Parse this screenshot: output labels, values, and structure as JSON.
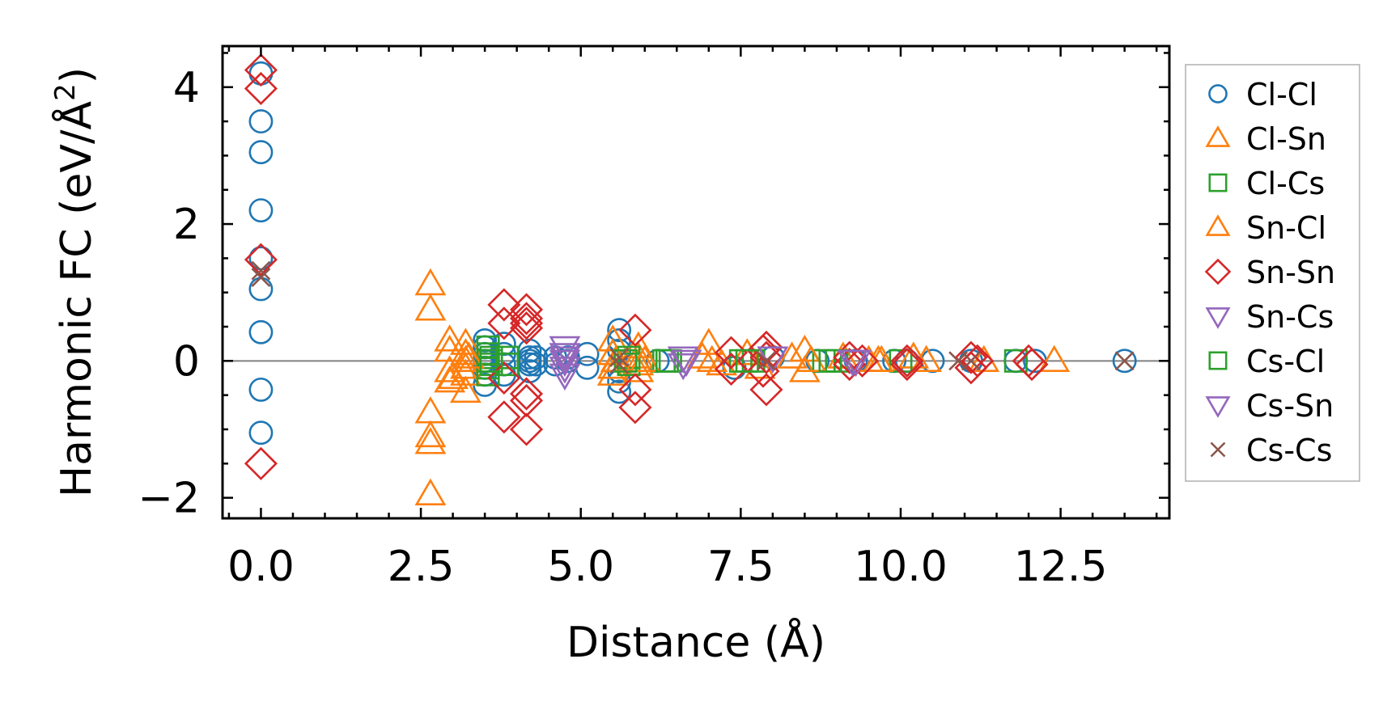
{
  "chart_data": {
    "type": "scatter",
    "title": "",
    "xlabel": "Distance (Å)",
    "ylabel_main": "Harmonic FC (eV/Å",
    "ylabel_sup": "2",
    "ylabel_close": ")",
    "xlim": [
      -0.6,
      14.2
    ],
    "ylim": [
      -2.3,
      4.6
    ],
    "xticks": [
      0.0,
      2.5,
      5.0,
      7.5,
      10.0,
      12.5
    ],
    "xtick_labels": [
      "0.0",
      "2.5",
      "5.0",
      "7.5",
      "10.0",
      "12.5"
    ],
    "yticks": [
      -2,
      0,
      2,
      4
    ],
    "ytick_labels": [
      "−2",
      "0",
      "2",
      "4"
    ],
    "x_minor_step": 0.5,
    "y_minor_step": 0.5,
    "zero_line": true,
    "grid": false,
    "legend_position": "outside-right",
    "series": [
      {
        "name": "Cl-Cl",
        "marker": "circle",
        "color": "#1f77b4",
        "points": [
          [
            0,
            4.2
          ],
          [
            0,
            3.5
          ],
          [
            0,
            3.05
          ],
          [
            0,
            2.2
          ],
          [
            0,
            1.5
          ],
          [
            0,
            1.05
          ],
          [
            0,
            0.42
          ],
          [
            0,
            -0.42
          ],
          [
            0,
            -1.05
          ],
          [
            3.5,
            0.3
          ],
          [
            3.5,
            0.2
          ],
          [
            3.5,
            0.1
          ],
          [
            3.5,
            0.0
          ],
          [
            3.5,
            -0.1
          ],
          [
            3.5,
            -0.2
          ],
          [
            3.5,
            -0.35
          ],
          [
            3.8,
            0.25
          ],
          [
            3.8,
            0.1
          ],
          [
            3.8,
            -0.05
          ],
          [
            3.8,
            -0.2
          ],
          [
            4.2,
            0.15
          ],
          [
            4.2,
            0.05
          ],
          [
            4.2,
            0.0
          ],
          [
            4.2,
            -0.05
          ],
          [
            4.2,
            -0.15
          ],
          [
            4.3,
            0.05
          ],
          [
            4.3,
            -0.05
          ],
          [
            4.6,
            0.05
          ],
          [
            4.6,
            -0.05
          ],
          [
            4.8,
            0.05
          ],
          [
            4.8,
            0.0
          ],
          [
            5.1,
            0.1
          ],
          [
            5.1,
            -0.1
          ],
          [
            5.6,
            0.45
          ],
          [
            5.6,
            0.3
          ],
          [
            5.6,
            0.15
          ],
          [
            5.6,
            -0.15
          ],
          [
            5.6,
            -0.3
          ],
          [
            5.6,
            -0.45
          ],
          [
            6.2,
            0.0
          ],
          [
            7.4,
            -0.1
          ],
          [
            8.0,
            0.05
          ],
          [
            8.7,
            0.0
          ],
          [
            9.3,
            0.0
          ],
          [
            9.9,
            0.0
          ],
          [
            10.1,
            0.0
          ],
          [
            10.5,
            0.0
          ],
          [
            11.1,
            0.0
          ],
          [
            11.8,
            0.0
          ],
          [
            12.1,
            0.0
          ],
          [
            13.5,
            0.0
          ]
        ]
      },
      {
        "name": "Cl-Sn",
        "marker": "triangle-up",
        "color": "#ff7f0e",
        "points": [
          [
            2.65,
            1.12
          ],
          [
            2.65,
            0.75
          ],
          [
            2.65,
            -0.75
          ],
          [
            2.65,
            -1.1
          ],
          [
            2.65,
            -1.2
          ],
          [
            2.65,
            -1.95
          ],
          [
            2.95,
            0.3
          ],
          [
            2.95,
            0.15
          ],
          [
            2.95,
            -0.15
          ],
          [
            2.95,
            -0.3
          ],
          [
            3.2,
            0.25
          ],
          [
            3.2,
            0.1
          ],
          [
            3.2,
            0.0
          ],
          [
            3.2,
            -0.1
          ],
          [
            3.2,
            -0.2
          ],
          [
            3.2,
            -0.45
          ],
          [
            5.5,
            0.3
          ],
          [
            5.5,
            0.1
          ],
          [
            5.5,
            -0.1
          ],
          [
            5.5,
            -0.2
          ],
          [
            5.9,
            0.2
          ],
          [
            5.9,
            0.05
          ],
          [
            5.9,
            -0.05
          ],
          [
            5.9,
            -0.15
          ],
          [
            6.9,
            0.05
          ],
          [
            7.0,
            0.25
          ],
          [
            7.2,
            -0.05
          ],
          [
            7.6,
            0.1
          ],
          [
            7.8,
            -0.1
          ],
          [
            8.3,
            0.05
          ],
          [
            8.5,
            0.15
          ],
          [
            8.5,
            -0.15
          ],
          [
            9.1,
            0.05
          ],
          [
            9.5,
            0.0
          ],
          [
            9.7,
            0.0
          ],
          [
            10.2,
            0.05
          ],
          [
            10.4,
            0.0
          ],
          [
            11.3,
            0.0
          ],
          [
            12.4,
            0.0
          ]
        ]
      },
      {
        "name": "Cl-Cs",
        "marker": "square",
        "color": "#2ca02c",
        "points": [
          [
            3.55,
            0.2
          ],
          [
            3.55,
            0.1
          ],
          [
            3.55,
            0.0
          ],
          [
            3.55,
            -0.1
          ],
          [
            3.55,
            -0.2
          ],
          [
            3.6,
            0.05
          ],
          [
            3.6,
            -0.05
          ],
          [
            3.85,
            0.05
          ],
          [
            3.85,
            -0.05
          ],
          [
            5.75,
            0.05
          ],
          [
            5.75,
            -0.05
          ],
          [
            6.3,
            0.0
          ],
          [
            6.4,
            0.0
          ],
          [
            7.5,
            0.0
          ],
          [
            7.7,
            0.0
          ],
          [
            8.8,
            0.0
          ],
          [
            9.0,
            0.0
          ],
          [
            10.0,
            0.0
          ],
          [
            11.8,
            0.0
          ]
        ]
      },
      {
        "name": "Sn-Cl",
        "marker": "triangle-up",
        "color": "#ff7f0e",
        "points": [
          [
            3.0,
            -0.25
          ],
          [
            3.25,
            0.05
          ],
          [
            5.55,
            0.0
          ],
          [
            6.0,
            0.0
          ],
          [
            7.05,
            0.0
          ],
          [
            8.6,
            0.0
          ],
          [
            9.65,
            0.0
          ]
        ]
      },
      {
        "name": "Sn-Sn",
        "marker": "diamond",
        "color": "#d62728",
        "points": [
          [
            0,
            4.25
          ],
          [
            0,
            3.98
          ],
          [
            0,
            1.48
          ],
          [
            0,
            -1.5
          ],
          [
            3.8,
            0.82
          ],
          [
            3.8,
            0.55
          ],
          [
            3.8,
            -0.25
          ],
          [
            3.8,
            -0.82
          ],
          [
            4.15,
            0.75
          ],
          [
            4.15,
            0.62
          ],
          [
            4.15,
            0.55
          ],
          [
            4.15,
            0.48
          ],
          [
            4.15,
            -0.48
          ],
          [
            4.15,
            -0.58
          ],
          [
            4.15,
            -1.0
          ],
          [
            5.85,
            0.45
          ],
          [
            5.85,
            -0.42
          ],
          [
            5.85,
            -0.68
          ],
          [
            7.35,
            0.12
          ],
          [
            7.35,
            -0.12
          ],
          [
            7.85,
            0.15
          ],
          [
            7.85,
            -0.15
          ],
          [
            7.9,
            0.2
          ],
          [
            7.9,
            -0.42
          ],
          [
            7.9,
            0.05
          ],
          [
            9.2,
            0.05
          ],
          [
            9.2,
            -0.05
          ],
          [
            9.4,
            0.0
          ],
          [
            10.1,
            0.0
          ],
          [
            10.1,
            -0.05
          ],
          [
            11.1,
            0.05
          ],
          [
            11.1,
            -0.1
          ],
          [
            11.2,
            0.0
          ],
          [
            12.0,
            0.0
          ],
          [
            12.05,
            -0.05
          ]
        ]
      },
      {
        "name": "Sn-Cs",
        "marker": "triangle-down",
        "color": "#9467bd",
        "points": [
          [
            4.75,
            0.2
          ],
          [
            4.75,
            0.1
          ],
          [
            4.75,
            0.0
          ],
          [
            4.75,
            -0.1
          ],
          [
            4.75,
            -0.2
          ],
          [
            6.6,
            0.05
          ],
          [
            6.6,
            -0.05
          ],
          [
            8.0,
            0.05
          ],
          [
            9.3,
            0.0
          ]
        ]
      },
      {
        "name": "Cs-Cl",
        "marker": "square",
        "color": "#2ca02c",
        "points": [
          [
            3.6,
            0.0
          ],
          [
            5.7,
            0.0
          ],
          [
            6.35,
            0.0
          ],
          [
            7.6,
            0.0
          ],
          [
            8.9,
            0.0
          ]
        ]
      },
      {
        "name": "Cs-Sn",
        "marker": "triangle-down",
        "color": "#9467bd",
        "points": [
          [
            4.75,
            0.05
          ],
          [
            6.65,
            0.0
          ],
          [
            9.25,
            0.0
          ]
        ]
      },
      {
        "name": "Cs-Cs",
        "marker": "x",
        "color": "#8c564b",
        "points": [
          [
            0,
            1.32
          ],
          [
            0,
            1.22
          ],
          [
            5.6,
            0.05
          ],
          [
            5.6,
            -0.05
          ],
          [
            7.9,
            0.0
          ],
          [
            10.9,
            0.0
          ],
          [
            11.1,
            0.0
          ],
          [
            13.5,
            0.0
          ]
        ]
      }
    ]
  }
}
